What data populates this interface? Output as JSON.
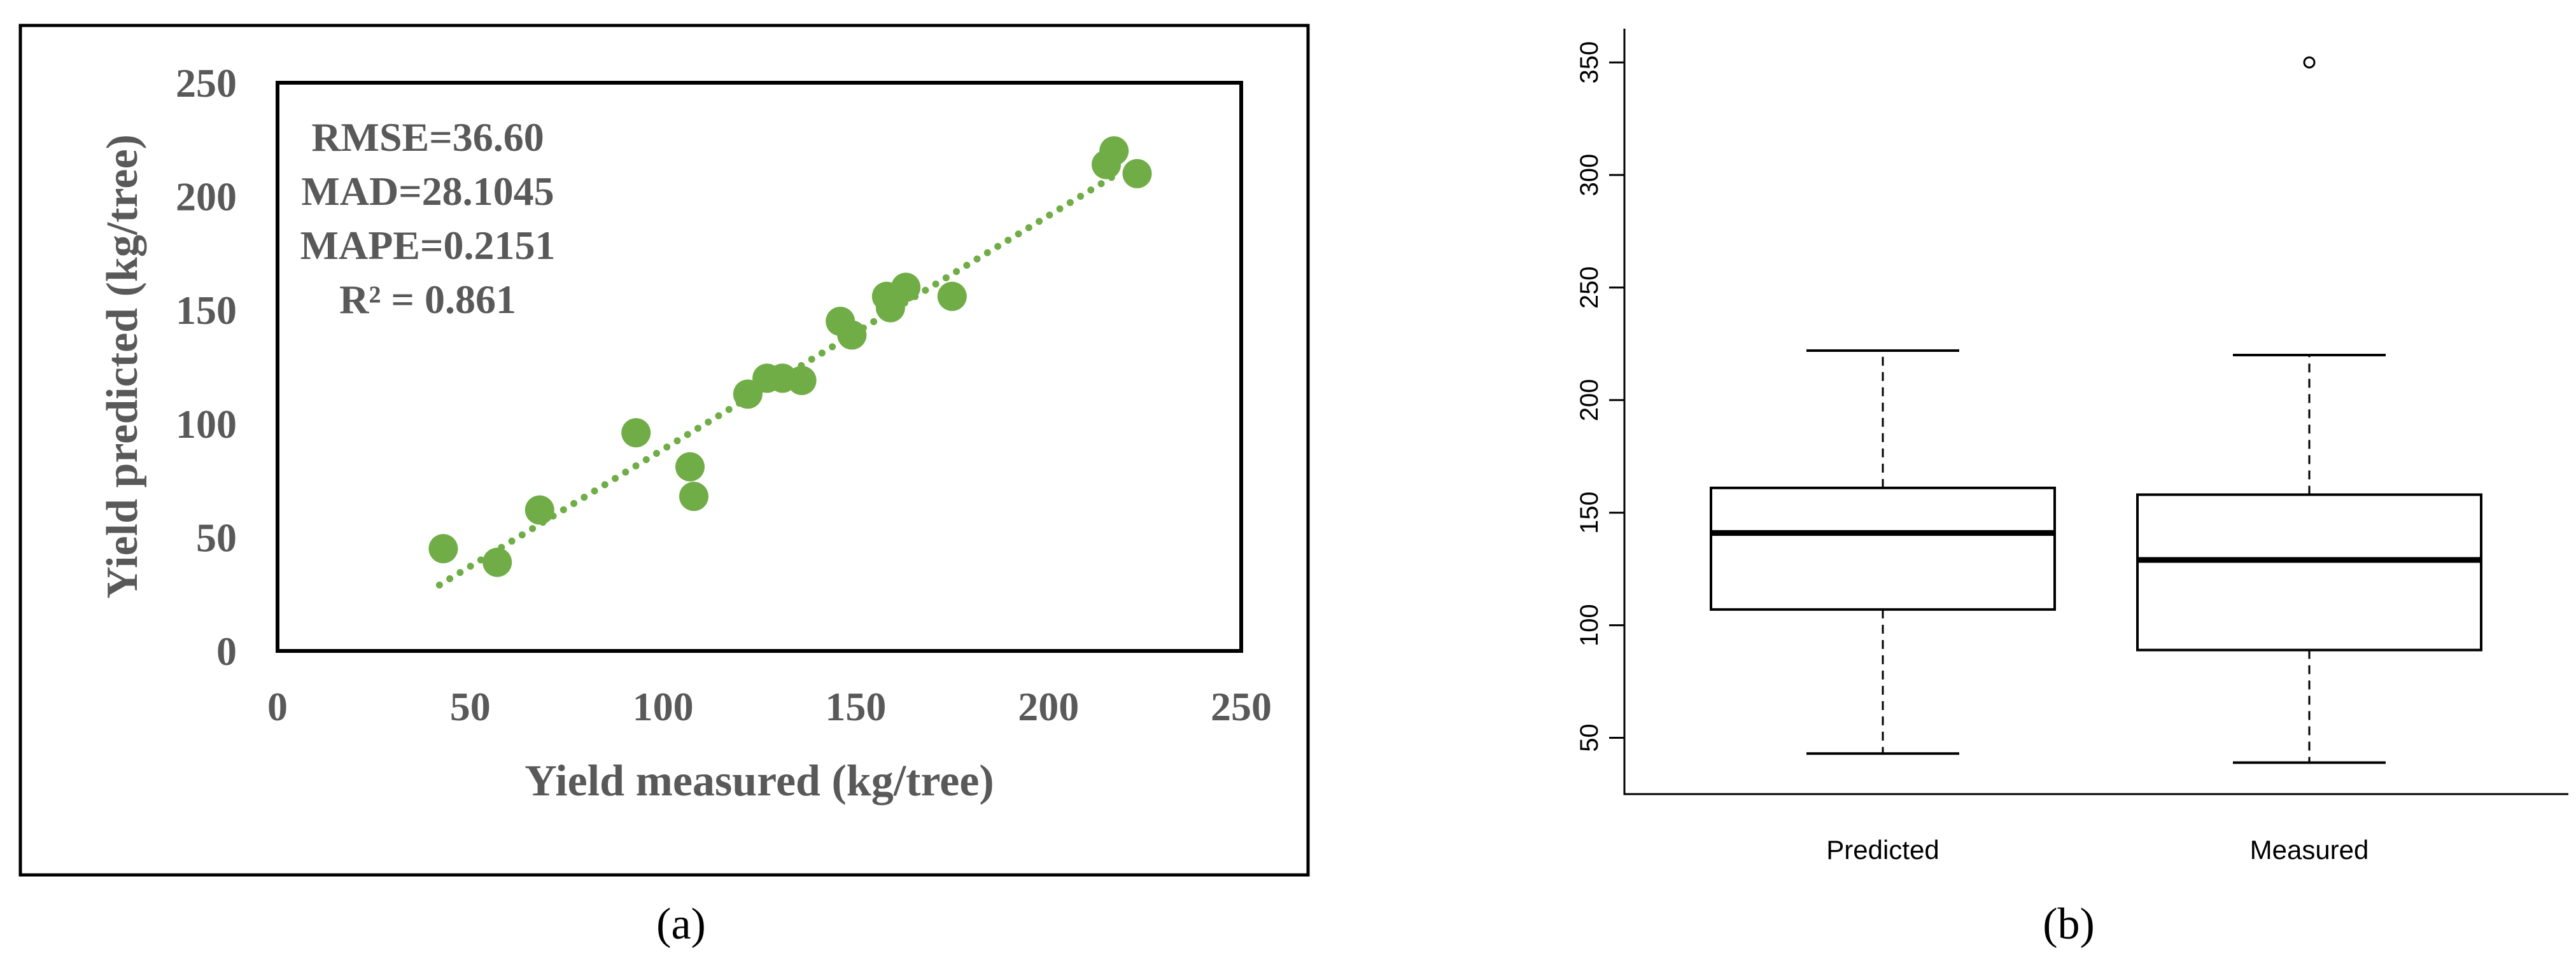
{
  "colors": {
    "scatter_marker": "#70ad47",
    "trendline": "#70ad47",
    "text_gray": "#595959",
    "axis_black": "#000000"
  },
  "chart_data": [
    {
      "id": "a",
      "type": "scatter",
      "panel_label": "(a)",
      "xlabel": "Yield measured (kg/tree)",
      "ylabel": "Yield predicted (kg/tree)",
      "xlim": [
        0,
        250
      ],
      "ylim": [
        0,
        250
      ],
      "xticks": [
        "0",
        "50",
        "100",
        "150",
        "200",
        "250"
      ],
      "yticks": [
        "0",
        "50",
        "100",
        "150",
        "200",
        "250"
      ],
      "annotations": [
        "RMSE=36.60",
        "MAD=28.1045",
        "MAPE=0.2151",
        "R² = 0.861"
      ],
      "points": [
        {
          "x": 43,
          "y": 45
        },
        {
          "x": 57,
          "y": 39
        },
        {
          "x": 68,
          "y": 62
        },
        {
          "x": 93,
          "y": 96
        },
        {
          "x": 107,
          "y": 81
        },
        {
          "x": 108,
          "y": 68
        },
        {
          "x": 122,
          "y": 113
        },
        {
          "x": 127,
          "y": 120
        },
        {
          "x": 131,
          "y": 120
        },
        {
          "x": 136,
          "y": 119
        },
        {
          "x": 146,
          "y": 145
        },
        {
          "x": 149,
          "y": 139
        },
        {
          "x": 158,
          "y": 156
        },
        {
          "x": 159,
          "y": 151
        },
        {
          "x": 163,
          "y": 160
        },
        {
          "x": 175,
          "y": 156
        },
        {
          "x": 215,
          "y": 214
        },
        {
          "x": 217,
          "y": 220
        },
        {
          "x": 223,
          "y": 210
        }
      ],
      "trendline": {
        "x_start": 42,
        "y_start": 29,
        "x_end": 218,
        "y_end": 210
      }
    },
    {
      "id": "b",
      "type": "box",
      "panel_label": "(b)",
      "ylim": [
        25,
        365
      ],
      "yticks": [
        "50",
        "100",
        "150",
        "200",
        "250",
        "300",
        "350"
      ],
      "boxes": [
        {
          "label": "Predicted",
          "min": 43,
          "q1": 107,
          "median": 141,
          "q3": 161,
          "max": 222,
          "outliers": []
        },
        {
          "label": "Measured",
          "min": 39,
          "q1": 89,
          "median": 129,
          "q3": 158,
          "max": 220,
          "outliers": [
            350
          ]
        }
      ]
    }
  ]
}
